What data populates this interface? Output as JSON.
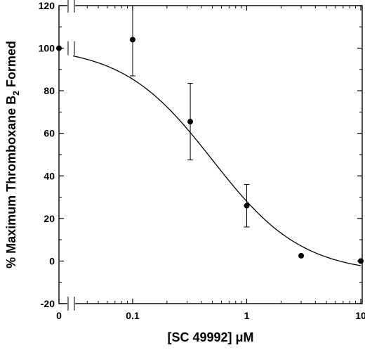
{
  "chart_data": {
    "type": "scatter",
    "xlabel": "[SC 49992] μM",
    "ylabel": "% Maximum Thromboxane B₂ Formed",
    "xscale": "log",
    "x_axis_break": true,
    "xlim": [
      0.03,
      10
    ],
    "ylim": [
      -20,
      120
    ],
    "y_ticks": [
      "-20",
      "0",
      "20",
      "40",
      "60",
      "80",
      "100",
      "120"
    ],
    "x_ticks": [
      {
        "x": 0,
        "label": "0"
      },
      {
        "x": 0.1,
        "label": "0.1"
      },
      {
        "x": 1,
        "label": "1"
      },
      {
        "x": 10,
        "label": "10"
      }
    ],
    "grid": false,
    "legend": "none",
    "series": [
      {
        "points": [
          {
            "x": 0,
            "y": 100,
            "err": 0
          },
          {
            "x": 0.1,
            "y": 104,
            "err": 17
          },
          {
            "x": 0.32,
            "y": 65.5,
            "err": 18
          },
          {
            "x": 1.0,
            "y": 26,
            "err": 10
          },
          {
            "x": 3.0,
            "y": 2.5,
            "err": 0
          },
          {
            "x": 10,
            "y": 0,
            "err": 0
          }
        ]
      }
    ],
    "fit_curve": {
      "model": "sigmoid",
      "top": 101,
      "bottom": -6,
      "ic50": 0.5,
      "hill": 1.1
    }
  }
}
